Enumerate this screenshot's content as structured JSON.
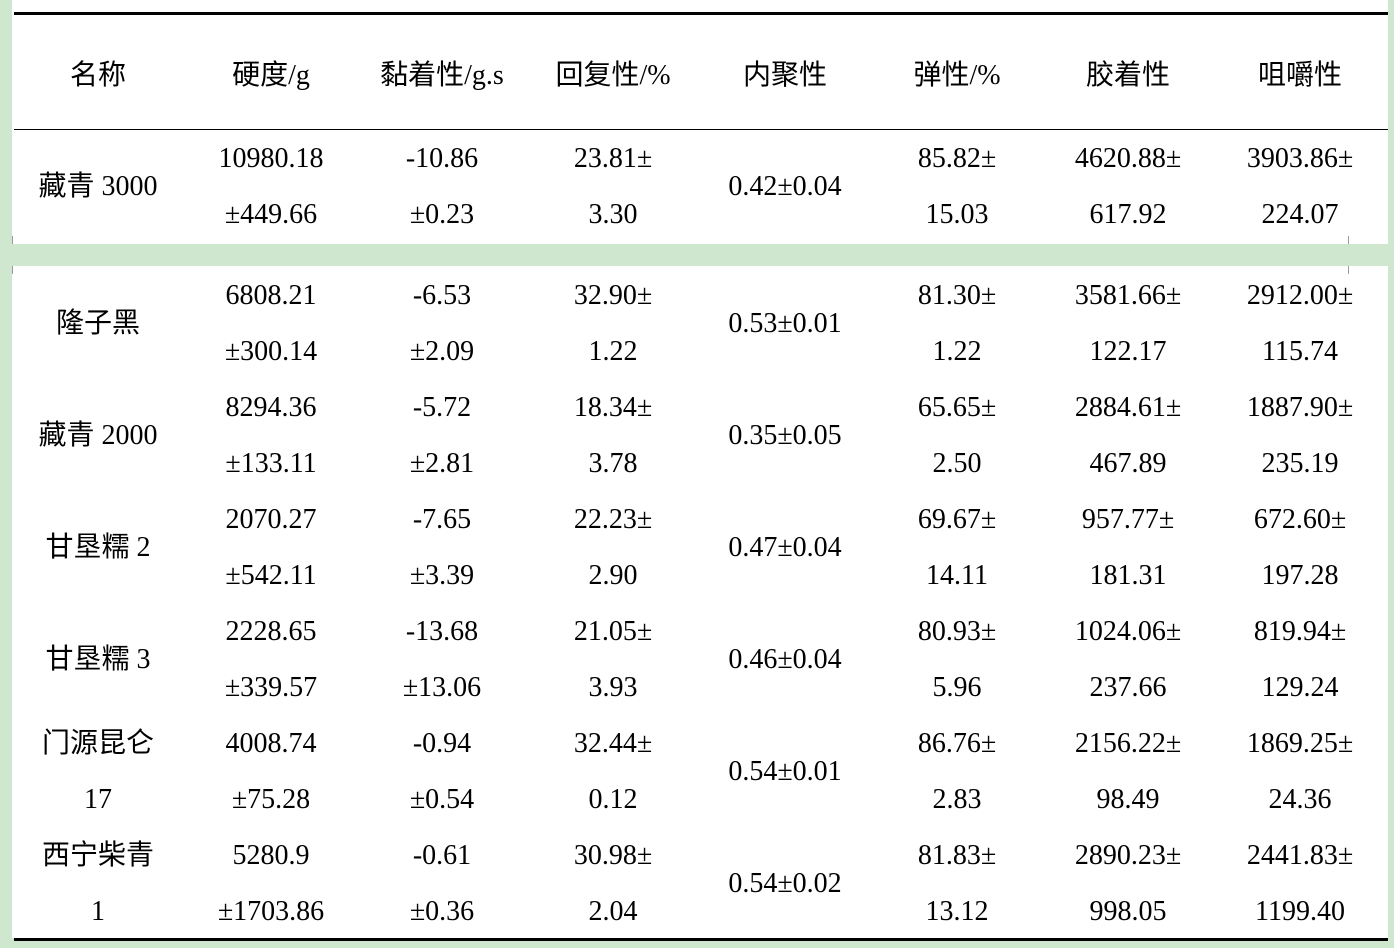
{
  "table": {
    "headers": [
      "名称",
      "硬度/g",
      "黏着性/g.s",
      "回复性/%",
      "内聚性",
      "弹性/%",
      "胶着性",
      "咀嚼性"
    ],
    "rows": [
      {
        "name": [
          "藏青 3000"
        ],
        "hardness": [
          "10980.18",
          "±449.66"
        ],
        "adhesiveness": [
          "-10.86",
          "±0.23"
        ],
        "resilience": [
          "23.81±",
          "3.30"
        ],
        "cohesiveness": [
          "0.42±0.04"
        ],
        "springiness": [
          "85.82±",
          "15.03"
        ],
        "gumminess": [
          "4620.88±",
          "617.92"
        ],
        "chewiness": [
          "3903.86±",
          "224.07"
        ]
      },
      {
        "name": [
          "隆子黑"
        ],
        "hardness": [
          "6808.21",
          "±300.14"
        ],
        "adhesiveness": [
          "-6.53",
          "±2.09"
        ],
        "resilience": [
          "32.90±",
          "1.22"
        ],
        "cohesiveness": [
          "0.53±0.01"
        ],
        "springiness": [
          "81.30±",
          "1.22"
        ],
        "gumminess": [
          "3581.66±",
          "122.17"
        ],
        "chewiness": [
          "2912.00±",
          "115.74"
        ]
      },
      {
        "name": [
          "藏青 2000"
        ],
        "hardness": [
          "8294.36",
          "±133.11"
        ],
        "adhesiveness": [
          "-5.72",
          "±2.81"
        ],
        "resilience": [
          "18.34±",
          "3.78"
        ],
        "cohesiveness": [
          "0.35±0.05"
        ],
        "springiness": [
          "65.65±",
          "2.50"
        ],
        "gumminess": [
          "2884.61±",
          "467.89"
        ],
        "chewiness": [
          "1887.90±",
          "235.19"
        ]
      },
      {
        "name": [
          "甘垦糯 2"
        ],
        "hardness": [
          "2070.27",
          "±542.11"
        ],
        "adhesiveness": [
          "-7.65",
          "±3.39"
        ],
        "resilience": [
          "22.23±",
          "2.90"
        ],
        "cohesiveness": [
          "0.47±0.04"
        ],
        "springiness": [
          "69.67±",
          "14.11"
        ],
        "gumminess": [
          "957.77±",
          "181.31"
        ],
        "chewiness": [
          "672.60±",
          "197.28"
        ]
      },
      {
        "name": [
          "甘垦糯 3"
        ],
        "hardness": [
          "2228.65",
          "±339.57"
        ],
        "adhesiveness": [
          "-13.68",
          "±13.06"
        ],
        "resilience": [
          "21.05±",
          "3.93"
        ],
        "cohesiveness": [
          "0.46±0.04"
        ],
        "springiness": [
          "80.93±",
          "5.96"
        ],
        "gumminess": [
          "1024.06±",
          "237.66"
        ],
        "chewiness": [
          "819.94±",
          "129.24"
        ]
      },
      {
        "name": [
          "门源昆仑",
          "17"
        ],
        "hardness": [
          "4008.74",
          "±75.28"
        ],
        "adhesiveness": [
          "-0.94",
          "±0.54"
        ],
        "resilience": [
          "32.44±",
          "0.12"
        ],
        "cohesiveness": [
          "0.54±0.01"
        ],
        "springiness": [
          "86.76±",
          "2.83"
        ],
        "gumminess": [
          "2156.22±",
          "98.49"
        ],
        "chewiness": [
          "1869.25±",
          "24.36"
        ]
      },
      {
        "name": [
          "西宁柴青",
          "1"
        ],
        "hardness": [
          "5280.9",
          "±1703.86"
        ],
        "adhesiveness": [
          "-0.61",
          "±0.36"
        ],
        "resilience": [
          "30.98±",
          "2.04"
        ],
        "cohesiveness": [
          "0.54±0.02"
        ],
        "springiness": [
          "81.83±",
          "13.12"
        ],
        "gumminess": [
          "2890.23±",
          "998.05"
        ],
        "chewiness": [
          "2441.83±",
          "1199.40"
        ]
      }
    ]
  }
}
